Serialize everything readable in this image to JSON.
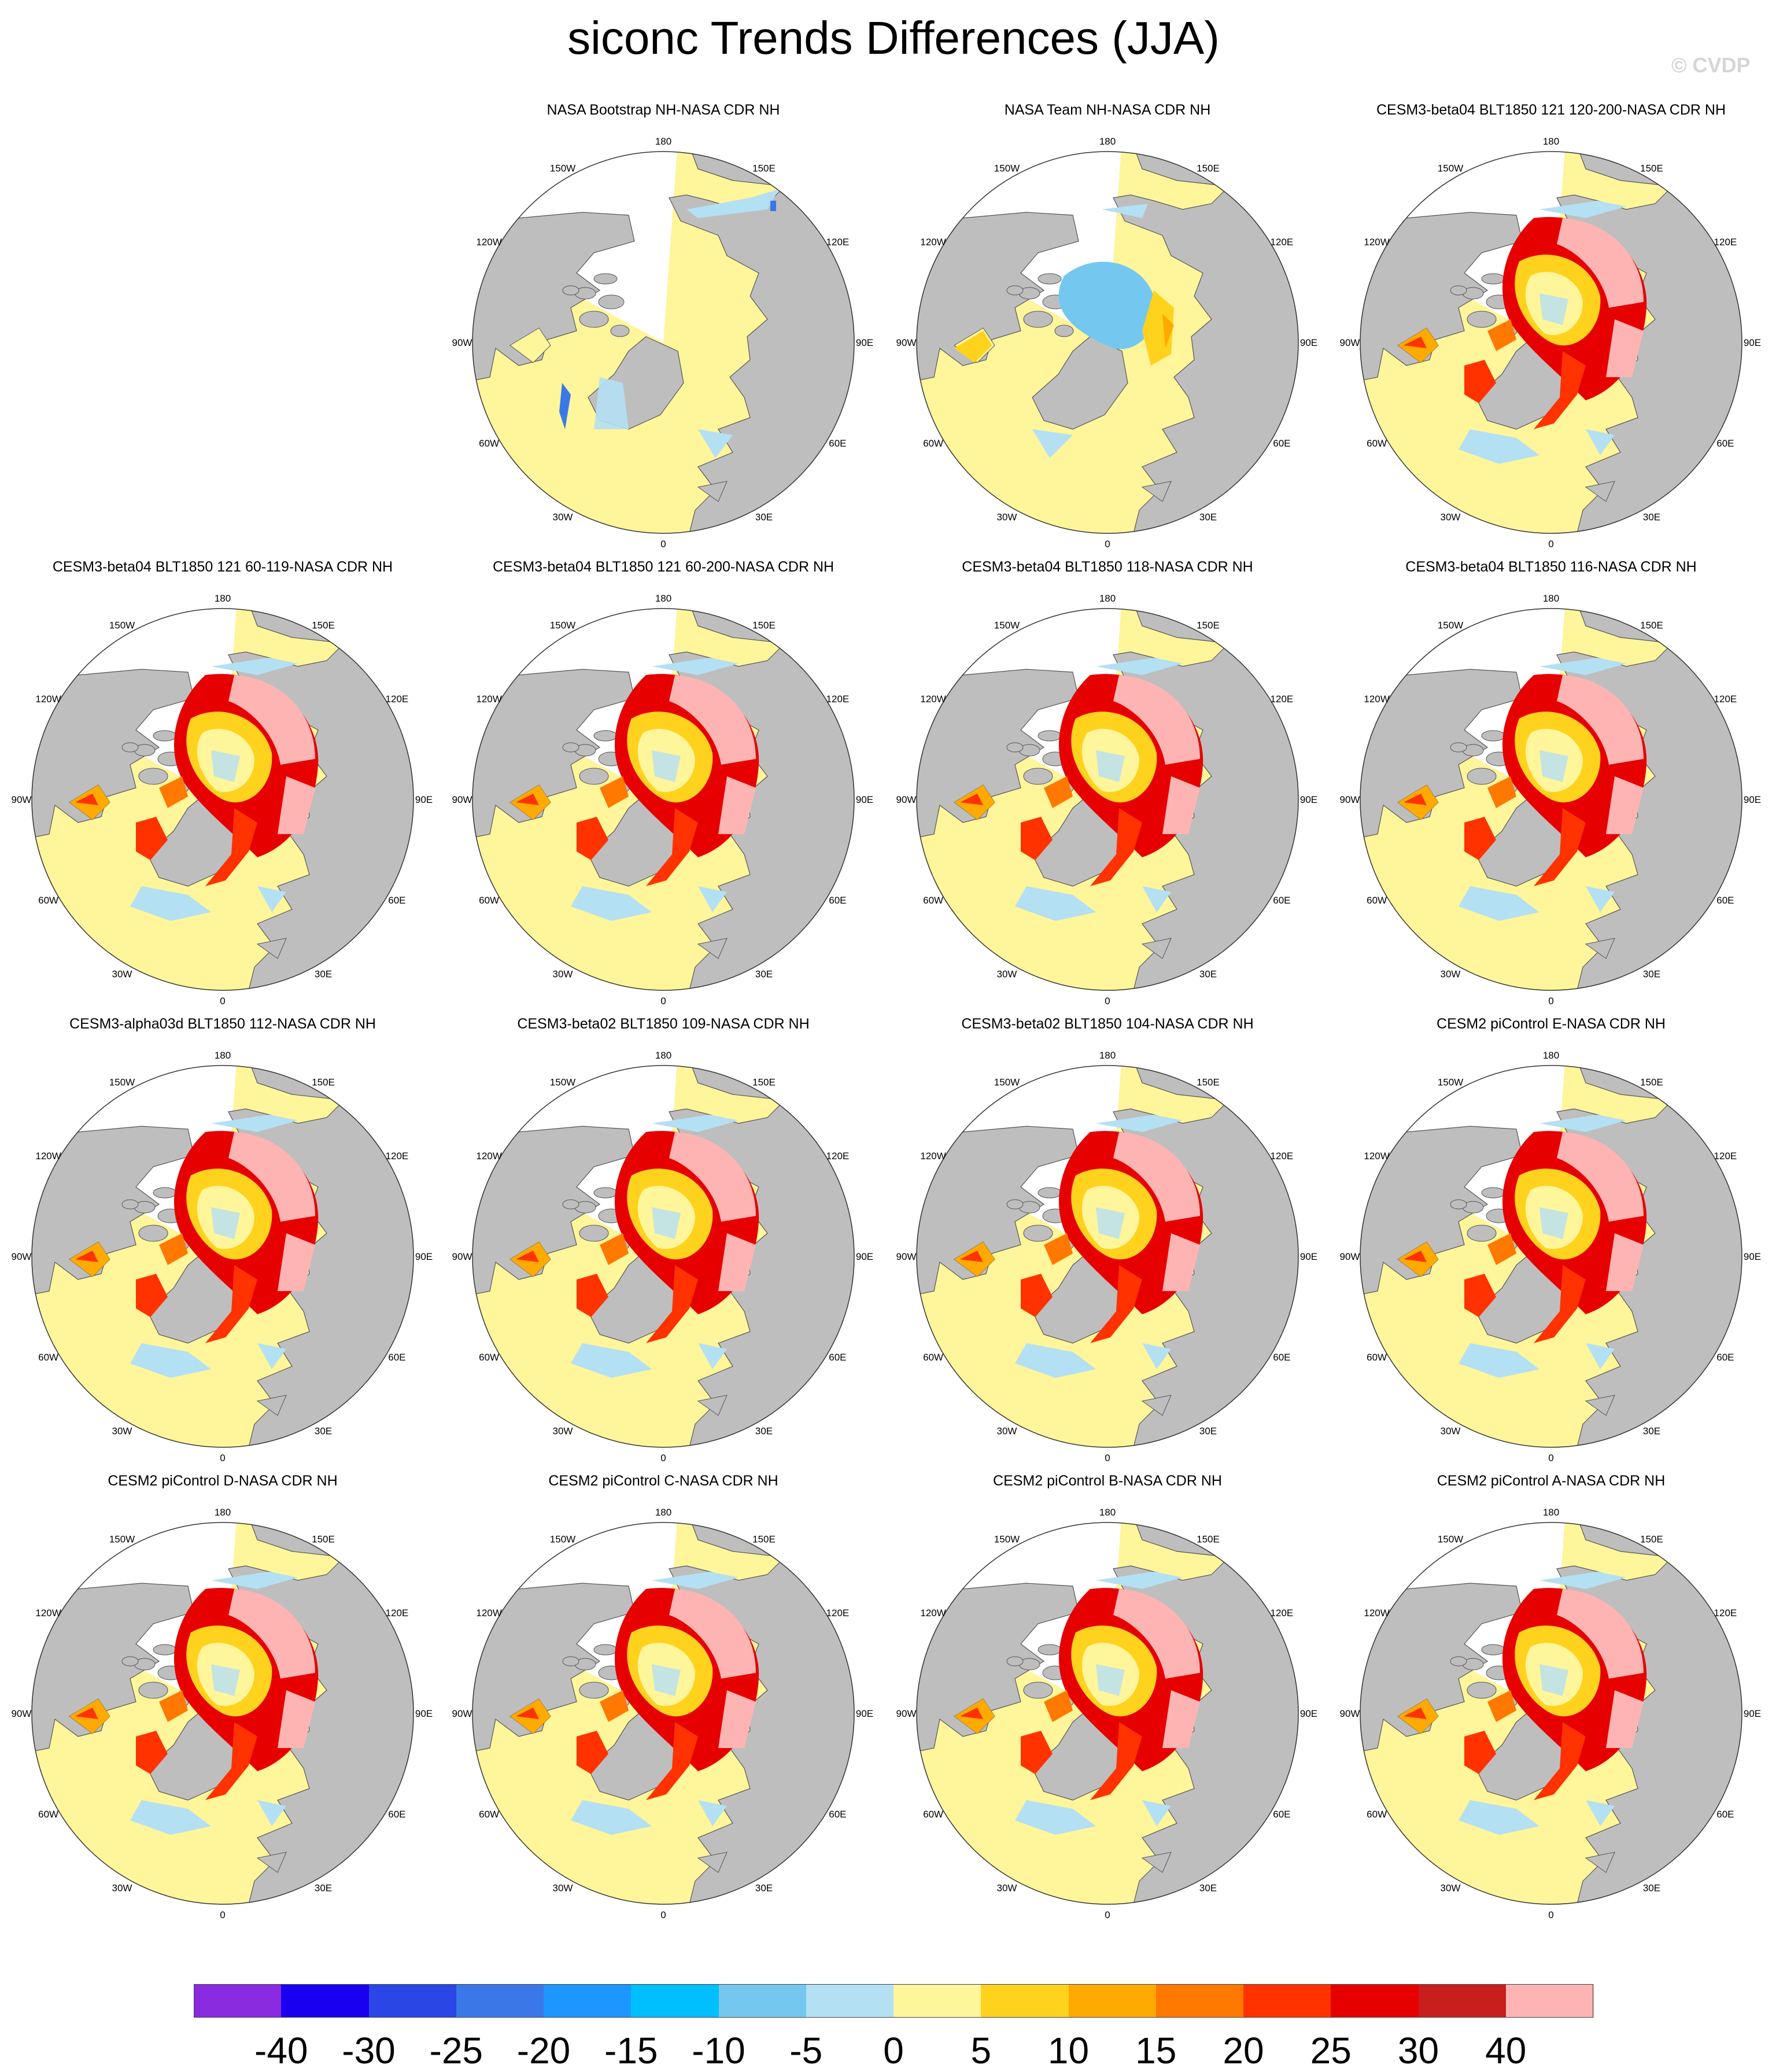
{
  "title": "siconc Trends Differences (JJA)",
  "watermark": "© CVDP",
  "lon_labels": [
    "180",
    "150E",
    "120E",
    "90E",
    "60E",
    "30E",
    "0",
    "30W",
    "60W",
    "90W",
    "120W",
    "150W"
  ],
  "colors": {
    "land": "#bebebe",
    "colorbar": [
      "#8a2be2",
      "#1a00f0",
      "#2a46e6",
      "#3a78e8",
      "#1e96ff",
      "#00bfff",
      "#74c8f0",
      "#b4e0f4",
      "#fff59a",
      "#ffd21e",
      "#ffaa00",
      "#ff7800",
      "#ff3200",
      "#e60000",
      "#c81e1e",
      "#ffb4b4"
    ]
  },
  "colorbar_labels": [
    "-40",
    "-30",
    "-25",
    "-20",
    "-15",
    "-10",
    "-5",
    "0",
    "5",
    "10",
    "15",
    "20",
    "25",
    "30",
    "40"
  ],
  "panels": [
    {
      "title": "NASA Bootstrap NH-NASA CDR NH",
      "style": "bootstrap"
    },
    {
      "title": "NASA Team NH-NASA CDR NH",
      "style": "team"
    },
    {
      "title": "CESM3-beta04 BLT1850 121 120-200-NASA CDR NH",
      "style": "model"
    },
    {
      "title": "CESM3-beta04 BLT1850 121 60-119-NASA CDR NH",
      "style": "model"
    },
    {
      "title": "CESM3-beta04 BLT1850 121 60-200-NASA CDR NH",
      "style": "model"
    },
    {
      "title": "CESM3-beta04 BLT1850 118-NASA CDR NH",
      "style": "model"
    },
    {
      "title": "CESM3-beta04 BLT1850 116-NASA CDR NH",
      "style": "model"
    },
    {
      "title": "CESM3-alpha03d BLT1850 112-NASA CDR NH",
      "style": "model"
    },
    {
      "title": "CESM3-beta02 BLT1850 109-NASA CDR NH",
      "style": "model"
    },
    {
      "title": "CESM3-beta02 BLT1850 104-NASA CDR NH",
      "style": "model"
    },
    {
      "title": "CESM2 piControl E-NASA CDR NH",
      "style": "model"
    },
    {
      "title": "CESM2 piControl D-NASA CDR NH",
      "style": "model"
    },
    {
      "title": "CESM2 piControl C-NASA CDR NH",
      "style": "model"
    },
    {
      "title": "CESM2 piControl B-NASA CDR NH",
      "style": "model"
    },
    {
      "title": "CESM2 piControl A-NASA CDR NH",
      "style": "model"
    }
  ]
}
